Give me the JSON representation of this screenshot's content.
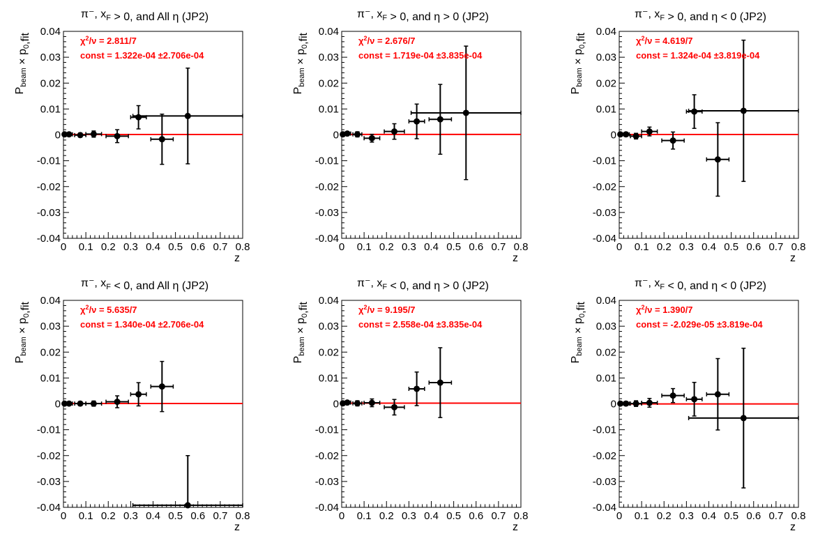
{
  "colors": {
    "fit_line": "#ff0000",
    "points": "#000000",
    "frame": "#000000",
    "fit_text": "#ff0000"
  },
  "chart_data": [
    {
      "type": "scatter",
      "title": "π⁻, x_F > 0, and All η (JP2)",
      "xlabel": "z",
      "ylabel": "P_beam × p_0,fit",
      "xlim": [
        0,
        0.8
      ],
      "ylim": [
        -0.04,
        0.04
      ],
      "x_ticks": [
        "0",
        "0.1",
        "0.2",
        "0.3",
        "0.4",
        "0.5",
        "0.6",
        "0.7",
        "0.8"
      ],
      "y_ticks": [
        "-0.04",
        "-0.03",
        "-0.02",
        "-0.01",
        "0",
        "0.01",
        "0.02",
        "0.03",
        "0.04"
      ],
      "chi2": "2.811/7",
      "const": "1.322e-04",
      "const_err": "±2.706e-04",
      "fit_value": 0.0001322,
      "points": [
        {
          "x": 0.005,
          "y": 0.0002,
          "xerr": 0.005,
          "yerr": 0.0005
        },
        {
          "x": 0.025,
          "y": 0.0002,
          "xerr": 0.015,
          "yerr": 0.0005
        },
        {
          "x": 0.075,
          "y": -0.0001,
          "xerr": 0.025,
          "yerr": 0.0008
        },
        {
          "x": 0.135,
          "y": 0.0003,
          "xerr": 0.035,
          "yerr": 0.0012
        },
        {
          "x": 0.24,
          "y": -0.0005,
          "xerr": 0.05,
          "yerr": 0.0025
        },
        {
          "x": 0.335,
          "y": 0.0068,
          "xerr": 0.035,
          "yerr": 0.0045
        },
        {
          "x": 0.44,
          "y": -0.0017,
          "xerr": 0.05,
          "yerr": 0.0097
        },
        {
          "x": 0.555,
          "y": 0.0073,
          "xerr": 0.245,
          "yerr": 0.0185
        }
      ]
    },
    {
      "type": "scatter",
      "title": "π⁻, x_F > 0, and η > 0 (JP2)",
      "xlabel": "z",
      "ylabel": "P_beam × p_0,fit",
      "xlim": [
        0,
        0.8
      ],
      "ylim": [
        -0.04,
        0.04
      ],
      "x_ticks": [
        "0",
        "0.1",
        "0.2",
        "0.3",
        "0.4",
        "0.5",
        "0.6",
        "0.7",
        "0.8"
      ],
      "y_ticks": [
        "-0.04",
        "-0.03",
        "-0.02",
        "-0.01",
        "0",
        "0.01",
        "0.02",
        "0.03",
        "0.04"
      ],
      "chi2": "2.676/7",
      "const": "1.719e-04",
      "const_err": "±3.835e-04",
      "fit_value": 0.0001719,
      "points": [
        {
          "x": 0.005,
          "y": 0.0002,
          "xerr": 0.005,
          "yerr": 0.0006
        },
        {
          "x": 0.025,
          "y": 0.0005,
          "xerr": 0.015,
          "yerr": 0.0007
        },
        {
          "x": 0.07,
          "y": 0.0002,
          "xerr": 0.02,
          "yerr": 0.001
        },
        {
          "x": 0.135,
          "y": -0.0013,
          "xerr": 0.035,
          "yerr": 0.0015
        },
        {
          "x": 0.235,
          "y": 0.0013,
          "xerr": 0.045,
          "yerr": 0.003
        },
        {
          "x": 0.335,
          "y": 0.0052,
          "xerr": 0.035,
          "yerr": 0.0067
        },
        {
          "x": 0.44,
          "y": 0.006,
          "xerr": 0.05,
          "yerr": 0.0135
        },
        {
          "x": 0.555,
          "y": 0.0085,
          "xerr": 0.245,
          "yerr": 0.0258
        }
      ]
    },
    {
      "type": "scatter",
      "title": "π⁻, x_F > 0, and η < 0 (JP2)",
      "xlabel": "z",
      "ylabel": "P_beam × p_0,fit",
      "xlim": [
        0,
        0.8
      ],
      "ylim": [
        -0.04,
        0.04
      ],
      "x_ticks": [
        "0",
        "0.1",
        "0.2",
        "0.3",
        "0.4",
        "0.5",
        "0.6",
        "0.7",
        "0.8"
      ],
      "y_ticks": [
        "-0.04",
        "-0.03",
        "-0.02",
        "-0.01",
        "0",
        "0.01",
        "0.02",
        "0.03",
        "0.04"
      ],
      "chi2": "4.619/7",
      "const": "1.324e-04",
      "const_err": "±3.819e-04",
      "fit_value": 0.0001324,
      "points": [
        {
          "x": 0.005,
          "y": 0.0002,
          "xerr": 0.005,
          "yerr": 0.0006
        },
        {
          "x": 0.03,
          "y": 0.0002,
          "xerr": 0.015,
          "yerr": 0.0008
        },
        {
          "x": 0.075,
          "y": -0.0005,
          "xerr": 0.025,
          "yerr": 0.0011
        },
        {
          "x": 0.135,
          "y": 0.0013,
          "xerr": 0.035,
          "yerr": 0.0017
        },
        {
          "x": 0.24,
          "y": -0.0022,
          "xerr": 0.05,
          "yerr": 0.0033
        },
        {
          "x": 0.335,
          "y": 0.009,
          "xerr": 0.035,
          "yerr": 0.0065
        },
        {
          "x": 0.44,
          "y": -0.0095,
          "xerr": 0.05,
          "yerr": 0.0142
        },
        {
          "x": 0.555,
          "y": 0.0093,
          "xerr": 0.245,
          "yerr": 0.0273
        }
      ]
    },
    {
      "type": "scatter",
      "title": "π⁻, x_F < 0, and All η (JP2)",
      "xlabel": "z",
      "ylabel": "P_beam × p_0,fit",
      "xlim": [
        0,
        0.8
      ],
      "ylim": [
        -0.04,
        0.04
      ],
      "x_ticks": [
        "0",
        "0.1",
        "0.2",
        "0.3",
        "0.4",
        "0.5",
        "0.6",
        "0.7",
        "0.8"
      ],
      "y_ticks": [
        "-0.04",
        "-0.03",
        "-0.02",
        "-0.01",
        "0",
        "0.01",
        "0.02",
        "0.03",
        "0.04"
      ],
      "chi2": "5.635/7",
      "const": "1.340e-04",
      "const_err": "±2.706e-04",
      "fit_value": 0.000134,
      "points": [
        {
          "x": 0.005,
          "y": 0.0001,
          "xerr": 0.005,
          "yerr": 0.0005
        },
        {
          "x": 0.025,
          "y": 0.0001,
          "xerr": 0.015,
          "yerr": 0.0005
        },
        {
          "x": 0.075,
          "y": 0.0001,
          "xerr": 0.025,
          "yerr": 0.0008
        },
        {
          "x": 0.135,
          "y": 0.0001,
          "xerr": 0.035,
          "yerr": 0.001
        },
        {
          "x": 0.24,
          "y": 0.0008,
          "xerr": 0.05,
          "yerr": 0.0023
        },
        {
          "x": 0.335,
          "y": 0.0037,
          "xerr": 0.035,
          "yerr": 0.0045
        },
        {
          "x": 0.44,
          "y": 0.0067,
          "xerr": 0.05,
          "yerr": 0.0097
        },
        {
          "x": 0.555,
          "y": -0.0392,
          "xerr": 0.245,
          "yerr": 0.0192
        }
      ]
    },
    {
      "type": "scatter",
      "title": "π⁻, x_F < 0, and η > 0 (JP2)",
      "xlabel": "z",
      "ylabel": "P_beam × p_0,fit",
      "xlim": [
        0,
        0.8
      ],
      "ylim": [
        -0.04,
        0.04
      ],
      "x_ticks": [
        "0",
        "0.1",
        "0.2",
        "0.3",
        "0.4",
        "0.5",
        "0.6",
        "0.7",
        "0.8"
      ],
      "y_ticks": [
        "-0.04",
        "-0.03",
        "-0.02",
        "-0.01",
        "0",
        "0.01",
        "0.02",
        "0.03",
        "0.04"
      ],
      "chi2": "9.195/7",
      "const": "2.558e-04",
      "const_err": "±3.835e-04",
      "fit_value": 0.0002558,
      "points": [
        {
          "x": 0.005,
          "y": 0.0002,
          "xerr": 0.005,
          "yerr": 0.0006
        },
        {
          "x": 0.025,
          "y": 0.0005,
          "xerr": 0.015,
          "yerr": 0.0007
        },
        {
          "x": 0.07,
          "y": 0.0002,
          "xerr": 0.02,
          "yerr": 0.001
        },
        {
          "x": 0.135,
          "y": 0.0004,
          "xerr": 0.035,
          "yerr": 0.0015
        },
        {
          "x": 0.235,
          "y": -0.0013,
          "xerr": 0.045,
          "yerr": 0.003
        },
        {
          "x": 0.335,
          "y": 0.0058,
          "xerr": 0.035,
          "yerr": 0.0065
        },
        {
          "x": 0.44,
          "y": 0.0082,
          "xerr": 0.05,
          "yerr": 0.0135
        }
      ]
    },
    {
      "type": "scatter",
      "title": "π⁻, x_F < 0, and η < 0 (JP2)",
      "xlabel": "z",
      "ylabel": "P_beam × p_0,fit",
      "xlim": [
        0,
        0.8
      ],
      "ylim": [
        -0.04,
        0.04
      ],
      "x_ticks": [
        "0",
        "0.1",
        "0.2",
        "0.3",
        "0.4",
        "0.5",
        "0.6",
        "0.7",
        "0.8"
      ],
      "y_ticks": [
        "-0.04",
        "-0.03",
        "-0.02",
        "-0.01",
        "0",
        "0.01",
        "0.02",
        "0.03",
        "0.04"
      ],
      "chi2": "1.390/7",
      "const": "-2.029e-05",
      "const_err": "±3.819e-04",
      "fit_value": -2.029e-05,
      "points": [
        {
          "x": 0.005,
          "y": 0.0001,
          "xerr": 0.005,
          "yerr": 0.0006
        },
        {
          "x": 0.03,
          "y": 0.0001,
          "xerr": 0.015,
          "yerr": 0.0008
        },
        {
          "x": 0.075,
          "y": 0.0001,
          "xerr": 0.025,
          "yerr": 0.0011
        },
        {
          "x": 0.135,
          "y": 0.0004,
          "xerr": 0.035,
          "yerr": 0.0017
        },
        {
          "x": 0.24,
          "y": 0.0032,
          "xerr": 0.05,
          "yerr": 0.0027
        },
        {
          "x": 0.335,
          "y": 0.0018,
          "xerr": 0.035,
          "yerr": 0.0065
        },
        {
          "x": 0.44,
          "y": 0.0037,
          "xerr": 0.05,
          "yerr": 0.0138
        },
        {
          "x": 0.555,
          "y": -0.0055,
          "xerr": 0.245,
          "yerr": 0.027
        }
      ]
    }
  ]
}
